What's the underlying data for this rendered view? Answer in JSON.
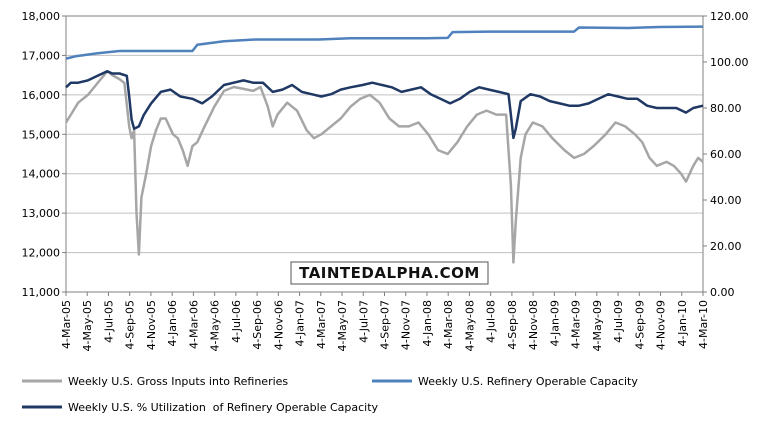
{
  "chart_data": {
    "type": "line",
    "y_left": {
      "range": [
        11000,
        18000
      ],
      "ticks": [
        "11,000",
        "12,000",
        "13,000",
        "14,000",
        "15,000",
        "16,000",
        "17,000",
        "18,000"
      ]
    },
    "y_right": {
      "range": [
        0,
        120
      ],
      "ticks": [
        "0.00",
        "20.00",
        "40.00",
        "60.00",
        "80.00",
        "100.00",
        "120.00"
      ]
    },
    "x_range": [
      "2005-03-04",
      "2010-03-12"
    ],
    "x_ticks": [
      "4-Mar-05",
      "4-May-05",
      "4-Jul-05",
      "4-Sep-05",
      "4-Nov-05",
      "4-Jan-06",
      "4-Mar-06",
      "4-May-06",
      "4-Jul-06",
      "4-Sep-06",
      "4-Nov-06",
      "4-Jan-07",
      "4-Mar-07",
      "4-May-07",
      "4-Jul-07",
      "4-Sep-07",
      "4-Nov-07",
      "4-Jan-08",
      "4-Mar-08",
      "4-May-08",
      "4-Jul-08",
      "4-Sep-08",
      "4-Nov-08",
      "4-Jan-09",
      "4-Mar-09",
      "4-May-09",
      "4-Jul-09",
      "4-Sep-09",
      "4-Nov-09",
      "4-Jan-10",
      "4-Mar-10"
    ],
    "grid": "horizontal",
    "legend_position": "bottom",
    "series": [
      {
        "name": "Weekly U.S. Gross Inputs into Refineries",
        "axis": "left",
        "color": "#a6a6a6",
        "points": [
          [
            "2005-03-04",
            15300
          ],
          [
            "2005-03-18",
            15500
          ],
          [
            "2005-04-08",
            15800
          ],
          [
            "2005-05-06",
            16000
          ],
          [
            "2005-06-03",
            16300
          ],
          [
            "2005-07-01",
            16600
          ],
          [
            "2005-07-15",
            16500
          ],
          [
            "2005-08-05",
            16400
          ],
          [
            "2005-08-19",
            16300
          ],
          [
            "2005-09-02",
            15200
          ],
          [
            "2005-09-09",
            14900
          ],
          [
            "2005-09-16",
            15100
          ],
          [
            "2005-09-23",
            13000
          ],
          [
            "2005-09-30",
            11950
          ],
          [
            "2005-10-07",
            13400
          ],
          [
            "2005-10-21",
            14000
          ],
          [
            "2005-11-04",
            14700
          ],
          [
            "2005-11-18",
            15100
          ],
          [
            "2005-12-02",
            15400
          ],
          [
            "2005-12-16",
            15400
          ],
          [
            "2006-01-06",
            15000
          ],
          [
            "2006-01-20",
            14900
          ],
          [
            "2006-02-03",
            14600
          ],
          [
            "2006-02-17",
            14200
          ],
          [
            "2006-03-03",
            14700
          ],
          [
            "2006-03-17",
            14800
          ],
          [
            "2006-04-07",
            15200
          ],
          [
            "2006-05-05",
            15700
          ],
          [
            "2006-06-02",
            16100
          ],
          [
            "2006-06-30",
            16200
          ],
          [
            "2006-07-28",
            16150
          ],
          [
            "2006-08-25",
            16100
          ],
          [
            "2006-09-15",
            16200
          ],
          [
            "2006-10-06",
            15700
          ],
          [
            "2006-10-20",
            15200
          ],
          [
            "2006-11-03",
            15500
          ],
          [
            "2006-12-01",
            15800
          ],
          [
            "2006-12-29",
            15600
          ],
          [
            "2007-01-26",
            15100
          ],
          [
            "2007-02-16",
            14900
          ],
          [
            "2007-03-09",
            15000
          ],
          [
            "2007-04-06",
            15200
          ],
          [
            "2007-05-04",
            15400
          ],
          [
            "2007-06-01",
            15700
          ],
          [
            "2007-06-29",
            15900
          ],
          [
            "2007-07-27",
            16000
          ],
          [
            "2007-08-24",
            15800
          ],
          [
            "2007-09-21",
            15400
          ],
          [
            "2007-10-19",
            15200
          ],
          [
            "2007-11-16",
            15200
          ],
          [
            "2007-12-14",
            15300
          ],
          [
            "2008-01-11",
            15000
          ],
          [
            "2008-02-08",
            14600
          ],
          [
            "2008-03-07",
            14500
          ],
          [
            "2008-04-04",
            14800
          ],
          [
            "2008-05-02",
            15200
          ],
          [
            "2008-05-30",
            15500
          ],
          [
            "2008-06-27",
            15600
          ],
          [
            "2008-07-25",
            15500
          ],
          [
            "2008-08-22",
            15500
          ],
          [
            "2008-09-05",
            13700
          ],
          [
            "2008-09-12",
            11750
          ],
          [
            "2008-09-19",
            12800
          ],
          [
            "2008-10-03",
            14400
          ],
          [
            "2008-10-17",
            15000
          ],
          [
            "2008-11-07",
            15300
          ],
          [
            "2008-12-05",
            15200
          ],
          [
            "2009-01-02",
            14900
          ],
          [
            "2009-02-06",
            14600
          ],
          [
            "2009-03-06",
            14400
          ],
          [
            "2009-04-03",
            14500
          ],
          [
            "2009-05-01",
            14700
          ],
          [
            "2009-06-05",
            15000
          ],
          [
            "2009-07-03",
            15300
          ],
          [
            "2009-07-31",
            15200
          ],
          [
            "2009-08-28",
            15000
          ],
          [
            "2009-09-18",
            14800
          ],
          [
            "2009-10-09",
            14400
          ],
          [
            "2009-10-30",
            14200
          ],
          [
            "2009-11-27",
            14300
          ],
          [
            "2009-12-18",
            14200
          ],
          [
            "2010-01-08",
            14000
          ],
          [
            "2010-01-22",
            13800
          ],
          [
            "2010-02-12",
            14200
          ],
          [
            "2010-02-26",
            14400
          ],
          [
            "2010-03-12",
            14300
          ]
        ]
      },
      {
        "name": "Weekly U.S. Refinery Operable Capacity",
        "axis": "right",
        "color": "#4f81bd",
        "points": [
          [
            "2005-03-04",
            101.5
          ],
          [
            "2005-04-01",
            102.5
          ],
          [
            "2005-06-03",
            103.8
          ],
          [
            "2005-08-05",
            104.8
          ],
          [
            "2006-03-03",
            104.8
          ],
          [
            "2006-03-17",
            107.5
          ],
          [
            "2006-06-02",
            109.0
          ],
          [
            "2006-09-01",
            109.8
          ],
          [
            "2007-03-02",
            109.8
          ],
          [
            "2007-06-01",
            110.3
          ],
          [
            "2008-01-04",
            110.3
          ],
          [
            "2008-03-07",
            110.5
          ],
          [
            "2008-03-21",
            113.0
          ],
          [
            "2008-07-04",
            113.2
          ],
          [
            "2009-03-06",
            113.2
          ],
          [
            "2009-03-20",
            115.0
          ],
          [
            "2009-08-07",
            114.8
          ],
          [
            "2009-11-06",
            115.2
          ],
          [
            "2010-03-12",
            115.4
          ]
        ]
      },
      {
        "name": "Weekly U.S. % Utilization  of Refinery Operable Capacity",
        "axis": "right",
        "color": "#1f3864",
        "points": [
          [
            "2005-03-04",
            89
          ],
          [
            "2005-03-18",
            91
          ],
          [
            "2005-04-08",
            91
          ],
          [
            "2005-05-06",
            92
          ],
          [
            "2005-06-03",
            94
          ],
          [
            "2005-07-01",
            96
          ],
          [
            "2005-07-15",
            95
          ],
          [
            "2005-08-05",
            95
          ],
          [
            "2005-08-26",
            94
          ],
          [
            "2005-09-02",
            85
          ],
          [
            "2005-09-09",
            75
          ],
          [
            "2005-09-16",
            71
          ],
          [
            "2005-09-30",
            72
          ],
          [
            "2005-10-14",
            77
          ],
          [
            "2005-11-04",
            82
          ],
          [
            "2005-12-02",
            87
          ],
          [
            "2005-12-30",
            88
          ],
          [
            "2006-01-27",
            85
          ],
          [
            "2006-03-03",
            84
          ],
          [
            "2006-03-31",
            82
          ],
          [
            "2006-04-28",
            85
          ],
          [
            "2006-06-02",
            90
          ],
          [
            "2006-06-30",
            91
          ],
          [
            "2006-07-28",
            92
          ],
          [
            "2006-08-25",
            91
          ],
          [
            "2006-09-22",
            91
          ],
          [
            "2006-10-20",
            87
          ],
          [
            "2006-11-17",
            88
          ],
          [
            "2006-12-15",
            90
          ],
          [
            "2007-01-12",
            87
          ],
          [
            "2007-02-09",
            86
          ],
          [
            "2007-03-09",
            85
          ],
          [
            "2007-04-06",
            86
          ],
          [
            "2007-05-04",
            88
          ],
          [
            "2007-06-01",
            89
          ],
          [
            "2007-07-06",
            90
          ],
          [
            "2007-08-03",
            91
          ],
          [
            "2007-08-31",
            90
          ],
          [
            "2007-09-28",
            89
          ],
          [
            "2007-10-26",
            87
          ],
          [
            "2007-11-23",
            88
          ],
          [
            "2007-12-21",
            89
          ],
          [
            "2008-01-18",
            86
          ],
          [
            "2008-02-15",
            84
          ],
          [
            "2008-03-14",
            82
          ],
          [
            "2008-04-11",
            84
          ],
          [
            "2008-05-09",
            87
          ],
          [
            "2008-06-06",
            89
          ],
          [
            "2008-07-04",
            88
          ],
          [
            "2008-08-01",
            87
          ],
          [
            "2008-08-29",
            86
          ],
          [
            "2008-09-05",
            77
          ],
          [
            "2008-09-12",
            67
          ],
          [
            "2008-09-19",
            71
          ],
          [
            "2008-10-03",
            83
          ],
          [
            "2008-10-31",
            86
          ],
          [
            "2008-11-28",
            85
          ],
          [
            "2008-12-26",
            83
          ],
          [
            "2009-01-23",
            82
          ],
          [
            "2009-02-20",
            81
          ],
          [
            "2009-03-20",
            81
          ],
          [
            "2009-04-17",
            82
          ],
          [
            "2009-05-15",
            84
          ],
          [
            "2009-06-12",
            86
          ],
          [
            "2009-07-10",
            85
          ],
          [
            "2009-08-07",
            84
          ],
          [
            "2009-09-04",
            84
          ],
          [
            "2009-10-02",
            81
          ],
          [
            "2009-10-30",
            80
          ],
          [
            "2009-11-27",
            80
          ],
          [
            "2009-12-25",
            80
          ],
          [
            "2010-01-22",
            78
          ],
          [
            "2010-02-12",
            80
          ],
          [
            "2010-03-12",
            81
          ]
        ]
      }
    ]
  },
  "logo": {
    "text": "TAINTEDΑLPHA.COM"
  }
}
